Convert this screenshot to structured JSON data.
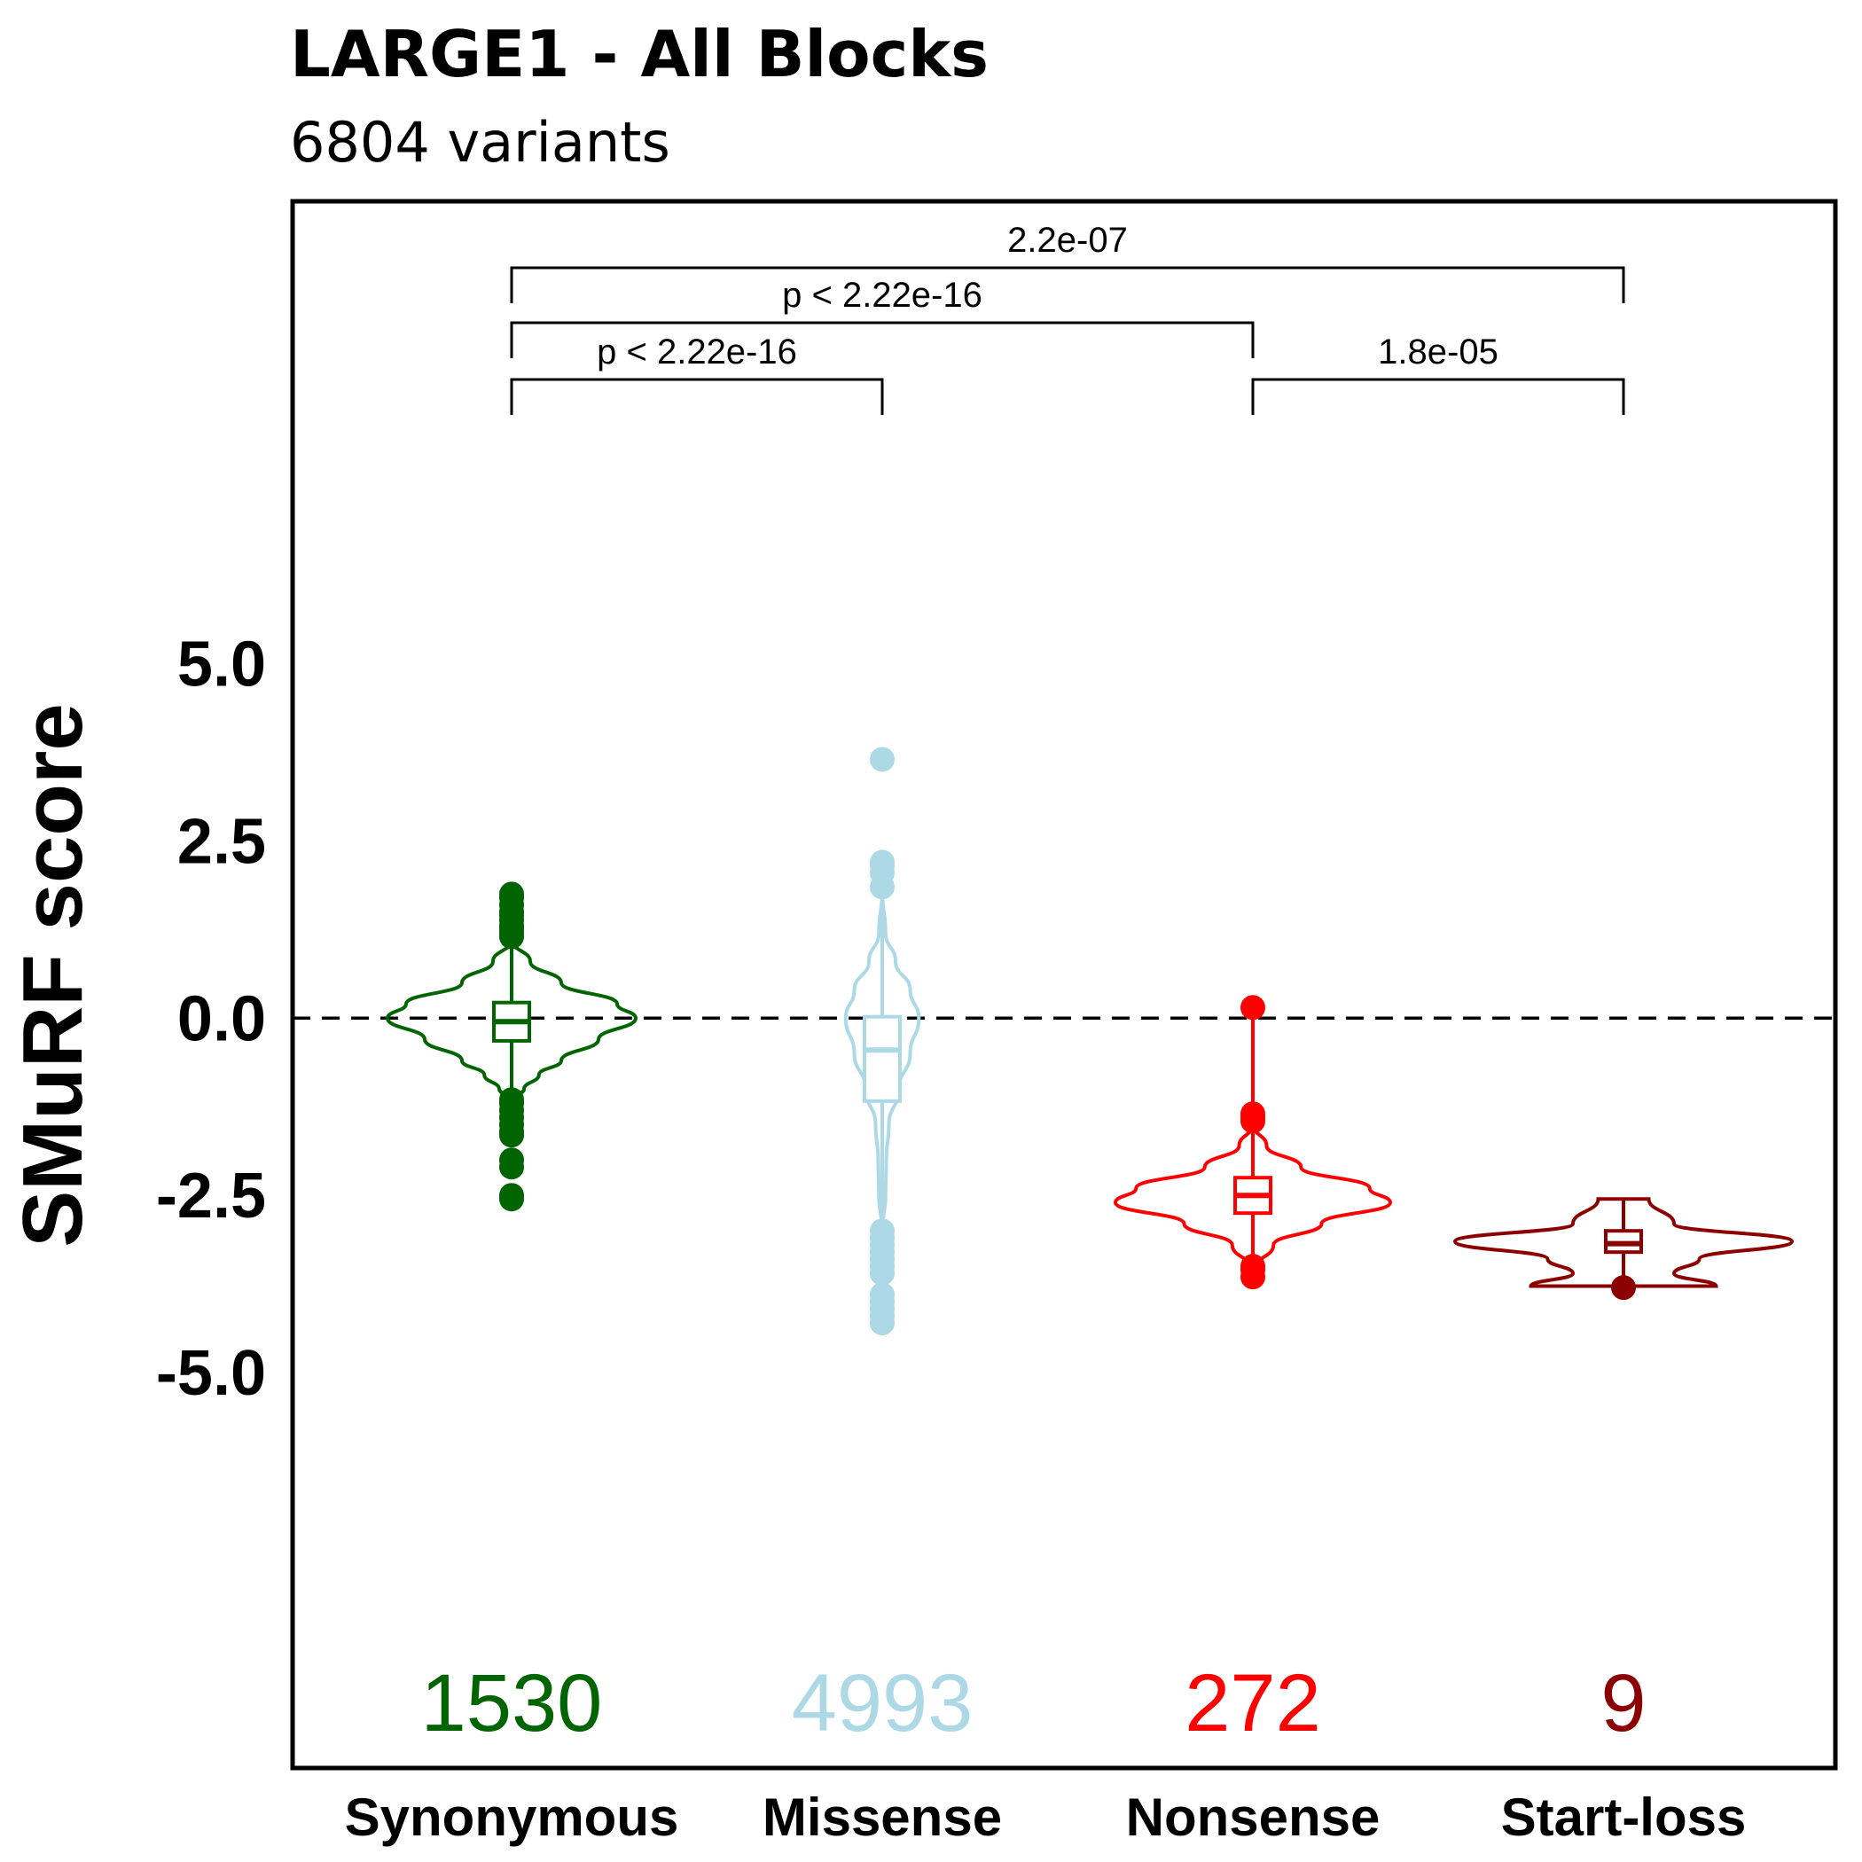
{
  "chart_data": {
    "type": "violin",
    "title": "LARGE1 - All Blocks",
    "subtitle": "6804 variants",
    "ylabel": "SMuRF score",
    "ylim": [
      -5.2,
      5.8
    ],
    "yticks": [
      5.0,
      2.5,
      0.0,
      -2.5,
      -5.0
    ],
    "ytick_labels": [
      "5.0",
      "2.5",
      "0.0",
      "-2.5",
      "-5.0"
    ],
    "reference_line": 0.0,
    "categories": [
      "Synonymous",
      "Missense",
      "Nonsense",
      "Start-loss"
    ],
    "groups": [
      {
        "name": "Synonymous",
        "count": "1530",
        "color": "#006400",
        "box": {
          "q1": -0.32,
          "median": -0.05,
          "q3": 0.22,
          "whisker_low": -1.1,
          "whisker_high": 1.1
        },
        "violin": [
          [
            1.1,
            0.0
          ],
          [
            0.8,
            0.15
          ],
          [
            0.5,
            0.4
          ],
          [
            0.2,
            0.85
          ],
          [
            0.0,
            1.0
          ],
          [
            -0.3,
            0.7
          ],
          [
            -0.6,
            0.4
          ],
          [
            -0.8,
            0.22
          ],
          [
            -1.0,
            0.1
          ],
          [
            -1.15,
            0.0
          ]
        ],
        "outliers": [
          1.75,
          1.7,
          1.6,
          1.5,
          1.45,
          1.38,
          1.3,
          1.25,
          1.2,
          1.15,
          -1.15,
          -1.2,
          -1.3,
          -1.4,
          -1.5,
          -1.6,
          -1.65,
          -2.0,
          -2.1,
          -2.5,
          -2.55
        ]
      },
      {
        "name": "Missense",
        "count": "4993",
        "color": "#add8e6",
        "box": {
          "q1": -1.17,
          "median": -0.45,
          "q3": 0.02,
          "whisker_low": -3.0,
          "whisker_high": 1.8
        },
        "violin": [
          [
            1.8,
            0.0
          ],
          [
            1.2,
            0.05
          ],
          [
            0.8,
            0.2
          ],
          [
            0.4,
            0.42
          ],
          [
            0.0,
            0.55
          ],
          [
            -0.5,
            0.42
          ],
          [
            -1.0,
            0.25
          ],
          [
            -1.5,
            0.1
          ],
          [
            -2.0,
            0.06
          ],
          [
            -2.5,
            0.05
          ],
          [
            -3.0,
            0.0
          ]
        ],
        "outliers": [
          3.65,
          2.2,
          2.15,
          2.05,
          1.85,
          -3.0,
          -3.1,
          -3.2,
          -3.3,
          -3.4,
          -3.5,
          -3.6,
          -3.9,
          -4.0,
          -4.1,
          -4.2,
          -4.3
        ]
      },
      {
        "name": "Nonsense",
        "count": "272",
        "color": "#ff0000",
        "box": {
          "q1": -2.75,
          "median": -2.5,
          "q3": -2.25,
          "whisker_low": -3.5,
          "whisker_high": 0.15
        },
        "violin": [
          [
            -1.5,
            0.0
          ],
          [
            -1.8,
            0.1
          ],
          [
            -2.1,
            0.35
          ],
          [
            -2.4,
            0.85
          ],
          [
            -2.6,
            1.0
          ],
          [
            -2.9,
            0.5
          ],
          [
            -3.2,
            0.15
          ],
          [
            -3.55,
            0.0
          ]
        ],
        "outliers": [
          0.15,
          -1.35,
          -1.4,
          -1.45,
          -3.5,
          -3.55,
          -3.65
        ]
      },
      {
        "name": "Start-loss",
        "count": "9",
        "color": "#8b0000",
        "box": {
          "q1": -3.3,
          "median": -3.18,
          "q3": -3.0,
          "whisker_low": -3.65,
          "whisker_high": -2.55
        },
        "violin": [
          [
            -2.55,
            0.15
          ],
          [
            -2.9,
            0.3
          ],
          [
            -3.15,
            1.0
          ],
          [
            -3.4,
            0.45
          ],
          [
            -3.6,
            0.3
          ],
          [
            -3.78,
            0.55
          ]
        ],
        "outliers": [
          -3.8
        ]
      }
    ],
    "comparisons": [
      {
        "from": "Synonymous",
        "to": "Missense",
        "label": "p < 2.22e-16"
      },
      {
        "from": "Nonsense",
        "to": "Start-loss",
        "label": "1.8e-05"
      },
      {
        "from": "Synonymous",
        "to": "Nonsense",
        "label": "p < 2.22e-16"
      },
      {
        "from": "Synonymous",
        "to": "Start-loss",
        "label": "2.2e-07"
      }
    ]
  }
}
